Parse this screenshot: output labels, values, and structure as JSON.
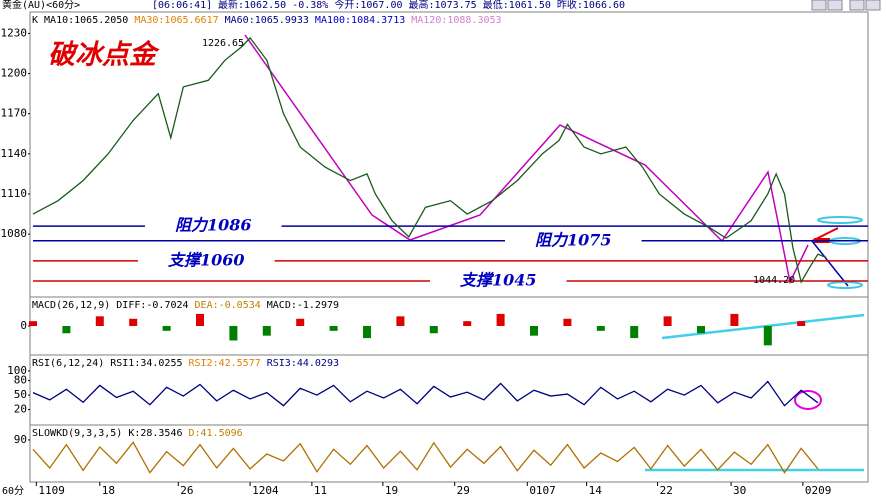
{
  "header": {
    "instrument": "黄金(AU)<60分>",
    "time": "[06:06:41]",
    "quote": "最新:1062.50 -0.38% 今开:1067.00 最高:1073.75 最低:1061.50 昨收:1066.60"
  },
  "chart_data": [
    {
      "type": "line",
      "title": "破冰点金",
      "legend": [
        {
          "text": "K",
          "color": "#000000"
        },
        {
          "text": "MA10:1065.2050",
          "color": "#000000"
        },
        {
          "text": "MA30:1065.6617",
          "color": "#e08000"
        },
        {
          "text": "MA60:1065.9933",
          "color": "#000080"
        },
        {
          "text": "MA100:1084.3713",
          "color": "#0000c0"
        },
        {
          "text": "MA120:1088.3053",
          "color": "#d080d0"
        }
      ],
      "x": [
        0,
        3,
        6,
        9,
        12,
        15,
        16.5,
        18,
        21,
        23,
        25,
        26,
        28,
        30,
        32,
        35,
        38,
        40,
        41,
        43,
        45,
        47,
        50,
        52,
        55,
        58,
        61,
        63,
        64,
        66,
        68,
        71,
        73,
        75,
        78,
        81,
        83,
        86,
        88,
        89,
        90,
        91,
        92,
        93,
        94,
        95
      ],
      "values": [
        1095,
        1105,
        1120,
        1140,
        1165,
        1185,
        1152,
        1190,
        1195,
        1210,
        1220,
        1226.65,
        1210,
        1170,
        1145,
        1130,
        1120,
        1125,
        1110,
        1090,
        1078,
        1100,
        1105,
        1095,
        1105,
        1120,
        1140,
        1150,
        1162,
        1145,
        1140,
        1145,
        1130,
        1110,
        1095,
        1085,
        1077,
        1090,
        1110,
        1125,
        1110,
        1070,
        1044.2,
        1055,
        1065,
        1062.5
      ],
      "color": "#1a5a1a",
      "xlim": [
        0,
        100
      ],
      "ylim": [
        1033,
        1246
      ],
      "yticks": [
        1080,
        1110,
        1140,
        1170,
        1200,
        1230
      ],
      "annotations": [
        {
          "text": "1226.65"
        },
        {
          "text": "1044.20"
        }
      ],
      "levels": [
        {
          "label": "阻力1086",
          "value": 1086,
          "color": "#0000a0"
        },
        {
          "label": "阻力1075",
          "value": 1075,
          "color": "#0000a0"
        },
        {
          "label": "支撑1060",
          "value": 1060,
          "color": "#d00000"
        },
        {
          "label": "支撑1045",
          "value": 1045,
          "color": "#d00000"
        }
      ]
    },
    {
      "type": "bar",
      "legend": [
        {
          "text": "MACD(26,12,9)",
          "color": "#000000"
        },
        {
          "text": "DIFF:-0.7024",
          "color": "#000000"
        },
        {
          "text": "DEA:-0.0534",
          "color": "#c08000"
        },
        {
          "text": "MACD:-1.2979",
          "color": "#000000"
        }
      ],
      "x": [
        0,
        4,
        8,
        12,
        16,
        20,
        24,
        28,
        32,
        36,
        40,
        44,
        48,
        52,
        56,
        60,
        64,
        68,
        72,
        76,
        80,
        84,
        88,
        92
      ],
      "values": [
        2,
        -3,
        4,
        3,
        -2,
        5,
        -6,
        -4,
        3,
        -2,
        -5,
        4,
        -3,
        2,
        5,
        -4,
        3,
        -2,
        -5,
        4,
        -3,
        5,
        -8,
        2
      ],
      "colors": [
        "#e00000",
        "#008000"
      ],
      "xlim": [
        0,
        100
      ],
      "ylim": [
        -12,
        12
      ],
      "yticks": [
        0
      ]
    },
    {
      "type": "line",
      "legend": [
        {
          "text": "RSI(6,12,24)",
          "color": "#000000"
        },
        {
          "text": "RSI1:34.0255",
          "color": "#000000"
        },
        {
          "text": "RSI2:42.5577",
          "color": "#e08000"
        },
        {
          "text": "RSI3:44.0293",
          "color": "#000080"
        }
      ],
      "x": [
        0,
        2,
        4,
        6,
        8,
        10,
        12,
        14,
        16,
        18,
        20,
        22,
        24,
        26,
        28,
        30,
        32,
        34,
        36,
        38,
        40,
        42,
        44,
        46,
        48,
        50,
        52,
        54,
        56,
        58,
        60,
        62,
        64,
        66,
        68,
        70,
        72,
        74,
        76,
        78,
        80,
        82,
        84,
        86,
        88,
        90,
        92,
        94
      ],
      "values": [
        55,
        40,
        62,
        35,
        70,
        45,
        58,
        30,
        66,
        48,
        72,
        38,
        60,
        42,
        55,
        28,
        64,
        50,
        70,
        36,
        58,
        44,
        62,
        32,
        68,
        46,
        56,
        40,
        74,
        38,
        60,
        48,
        52,
        30,
        66,
        42,
        58,
        36,
        62,
        50,
        70,
        34,
        56,
        44,
        78,
        28,
        60,
        34
      ],
      "color": "#000080",
      "xlim": [
        0,
        100
      ],
      "ylim": [
        -12,
        133
      ],
      "yticks": [
        20,
        50,
        80,
        100
      ]
    },
    {
      "type": "line",
      "legend": [
        {
          "text": "SLOWKD(9,3,3,5)",
          "color": "#000000"
        },
        {
          "text": "K:28.3546",
          "color": "#000000"
        },
        {
          "text": "D:41.5096",
          "color": "#c08000"
        }
      ],
      "x": [
        0,
        2,
        4,
        6,
        8,
        10,
        12,
        14,
        16,
        18,
        20,
        22,
        24,
        26,
        28,
        30,
        32,
        34,
        36,
        38,
        40,
        42,
        44,
        46,
        48,
        50,
        52,
        54,
        56,
        58,
        60,
        62,
        64,
        66,
        68,
        70,
        72,
        74,
        76,
        78,
        80,
        82,
        84,
        86,
        88,
        90,
        92,
        94
      ],
      "values": [
        70,
        30,
        80,
        25,
        75,
        40,
        85,
        20,
        65,
        35,
        80,
        30,
        72,
        28,
        60,
        45,
        82,
        22,
        70,
        38,
        78,
        30,
        66,
        26,
        84,
        32,
        70,
        40,
        76,
        24,
        68,
        36,
        80,
        30,
        62,
        44,
        74,
        28,
        78,
        34,
        70,
        26,
        64,
        38,
        80,
        20,
        72,
        28
      ],
      "color": "#b07000",
      "xlim": [
        0,
        100
      ],
      "ylim": [
        0,
        122
      ],
      "yticks": [
        90
      ],
      "xlabel": "60分",
      "xticks": [
        {
          "value": 0.4,
          "label": "1109"
        },
        {
          "value": 8,
          "label": "18"
        },
        {
          "value": 17.4,
          "label": "26"
        },
        {
          "value": 26,
          "label": "1204"
        },
        {
          "value": 33.4,
          "label": "11"
        },
        {
          "value": 41.9,
          "label": "19"
        },
        {
          "value": 50.5,
          "label": "29"
        },
        {
          "value": 59.2,
          "label": "0107"
        },
        {
          "value": 66.3,
          "label": "14"
        },
        {
          "value": 74.8,
          "label": "22"
        },
        {
          "value": 83.6,
          "label": "30"
        },
        {
          "value": 92.2,
          "label": "0209"
        }
      ]
    }
  ]
}
